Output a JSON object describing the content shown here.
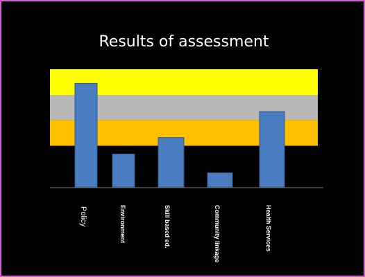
{
  "chart_data": {
    "type": "bar",
    "title": "Results of assessment",
    "xlabel": "",
    "ylabel": "",
    "grid": false,
    "legend": "none",
    "categories": [
      "Policy",
      "Environment",
      "Skill based ed.",
      "Community linkage",
      "Health Services"
    ],
    "values": [
      88,
      28,
      42,
      12,
      64
    ],
    "ylim": [
      0,
      100
    ],
    "bands": [
      {
        "from": 0,
        "to": 35,
        "color": "#000000"
      },
      {
        "from": 35,
        "to": 57,
        "color": "#ffc000"
      },
      {
        "from": 57,
        "to": 78,
        "color": "#b8b8b8"
      },
      {
        "from": 78,
        "to": 100,
        "color": "#ffff00"
      }
    ],
    "bar_color": "#4a7cc0"
  }
}
